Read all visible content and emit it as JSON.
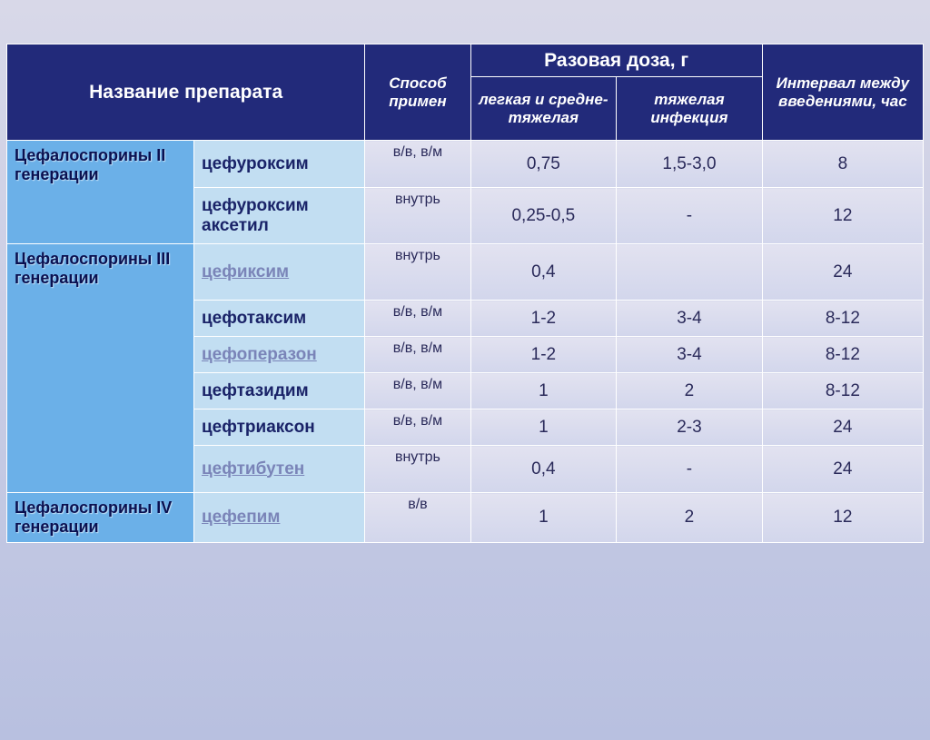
{
  "headers": {
    "drug_name": "Название препарата",
    "method": "Способ примен",
    "single_dose": "Разовая доза, г",
    "dose_light": "легкая и средне-тяжелая",
    "dose_heavy": "тяжелая инфекция",
    "interval": "Интервал между введениями, час"
  },
  "groups": [
    {
      "label": "Цефалоспорины II генерации",
      "rowspan": 2,
      "rows": [
        {
          "drug": "цефуроксим",
          "link": false,
          "route": "в/в, в/м",
          "d1": "0,75",
          "d2": "1,5-3,0",
          "int": "8"
        },
        {
          "drug": "цефуроксим аксетил",
          "link": false,
          "route": "внутрь",
          "d1": "0,25-0,5",
          "d2": "-",
          "int": "12"
        }
      ]
    },
    {
      "label": "Цефалоспорины III генерации",
      "rowspan": 6,
      "rows": [
        {
          "drug": "цефиксим",
          "link": true,
          "route": "внутрь",
          "d1": "0,4",
          "d2": "",
          "int": "24"
        },
        {
          "drug": "цефотаксим",
          "link": false,
          "route": "в/в, в/м",
          "d1": "1-2",
          "d2": "3-4",
          "int": "8-12"
        },
        {
          "drug": "цефоперазон",
          "link": true,
          "route": "в/в, в/м",
          "d1": "1-2",
          "d2": "3-4",
          "int": "8-12"
        },
        {
          "drug": "цефтазидим",
          "link": false,
          "route": "в/в, в/м",
          "d1": "1",
          "d2": "2",
          "int": "8-12"
        },
        {
          "drug": "цефтриаксон",
          "link": false,
          "route": "в/в, в/м",
          "d1": "1",
          "d2": "2-3",
          "int": "24"
        },
        {
          "drug": "цефтибутен",
          "link": true,
          "route": "внутрь",
          "d1": "0,4",
          "d2": "-",
          "int": "24"
        }
      ]
    },
    {
      "label": "Цефалоспорины IV генерации",
      "rowspan": 1,
      "rows": [
        {
          "drug": "цефепим",
          "link": true,
          "route": "в/в",
          "d1": "1",
          "d2": "2",
          "int": "12"
        }
      ]
    }
  ],
  "style": {
    "header_bg": "#222a7a",
    "header_fg": "#ffffff",
    "group_bg": "#6bb0e8",
    "group_fg": "#0a1050",
    "drug_bg": "#c2def2",
    "drug_fg": "#1a2368",
    "link_fg": "#7a84b8",
    "val_bg_top": "#e2e2f0",
    "val_bg_bot": "#d2d6ec",
    "val_fg": "#2a2a5a",
    "border": "#ffffff",
    "body_bg_top": "#d8d8e8",
    "body_bg_bot": "#b8c0e0",
    "font_main": 21,
    "font_sub": 17,
    "font_group": 18,
    "font_drug": 19,
    "font_val": 19,
    "font_route": 16
  }
}
